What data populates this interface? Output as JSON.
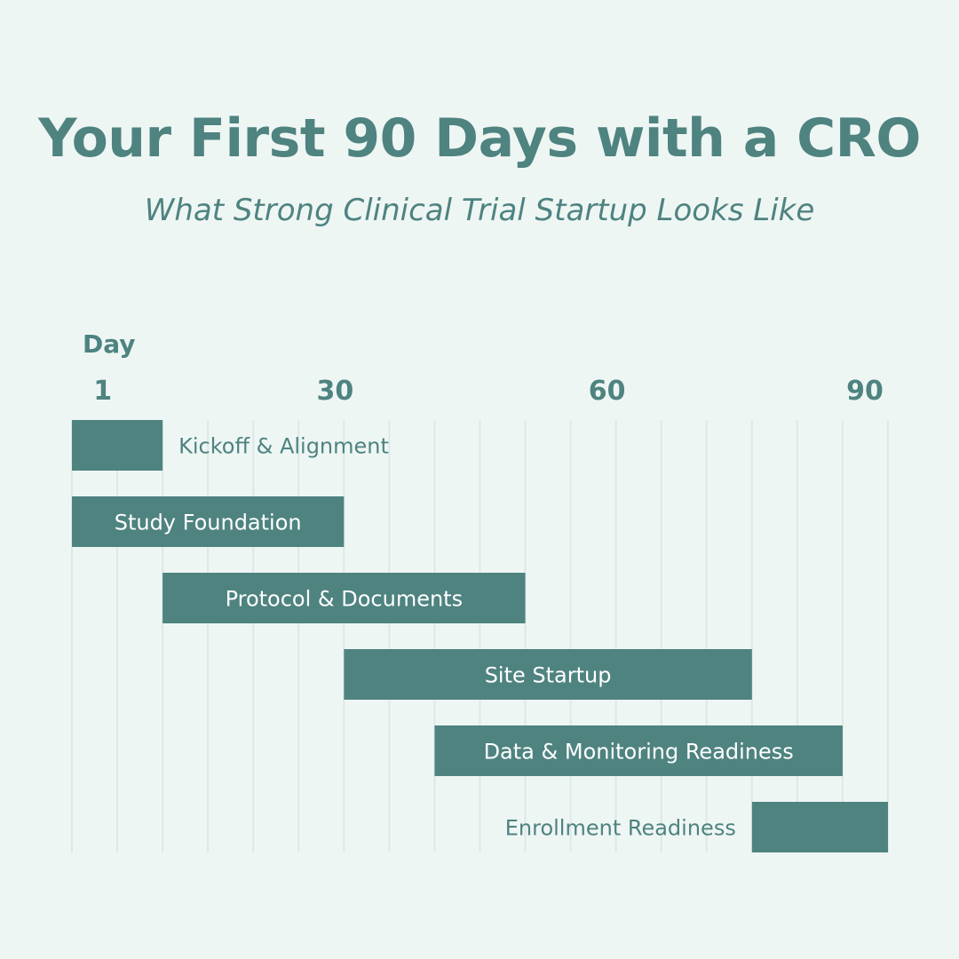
{
  "header": {
    "title": "Your First 90 Days with a CRO",
    "subtitle": "What Strong Clinical Trial Startup Looks Like"
  },
  "chart_data": {
    "type": "bar",
    "orientation": "horizontal-gantt",
    "xlabel": "Day",
    "x_ticks": [
      1,
      30,
      60,
      90
    ],
    "xlim": [
      0,
      90
    ],
    "grid": true,
    "tasks": [
      {
        "name": "Kickoff & Alignment",
        "start": 0,
        "end": 10,
        "label_position": "outside-right"
      },
      {
        "name": "Study Foundation",
        "start": 0,
        "end": 30,
        "label_position": "inside"
      },
      {
        "name": "Protocol & Documents",
        "start": 10,
        "end": 50,
        "label_position": "inside"
      },
      {
        "name": "Site Startup",
        "start": 30,
        "end": 75,
        "label_position": "inside"
      },
      {
        "name": "Data & Monitoring Readiness",
        "start": 40,
        "end": 85,
        "label_position": "inside"
      },
      {
        "name": "Enrollment Readiness",
        "start": 75,
        "end": 90,
        "label_position": "outside-left"
      }
    ],
    "colors": {
      "bar": "#4e8380",
      "text": "#4e8380",
      "bar_text": "#ffffff",
      "grid": "#dde9e6"
    }
  }
}
